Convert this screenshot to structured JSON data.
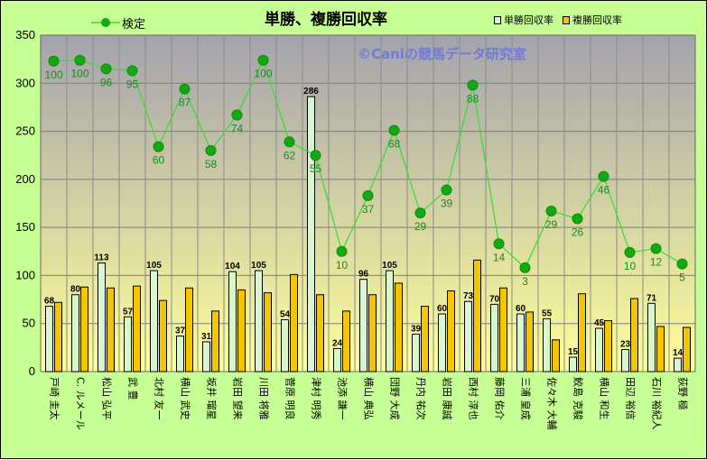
{
  "title": "単勝、複勝回収率",
  "watermark": "©Caniの競馬データ研究室",
  "colors": {
    "win": "#d8f7cf",
    "place": "#f5c600",
    "line": "#33dd33",
    "marker": "#11aa11",
    "plot_top": "#a4a2ad",
    "plot_bottom": "#ffff99",
    "frame": "#c6ff94"
  },
  "chart_data": {
    "type": "bar",
    "title": "単勝、複勝回収率",
    "ylim": [
      0,
      350
    ],
    "yticks": [
      0,
      50,
      100,
      150,
      200,
      250,
      300,
      350
    ],
    "grid": true,
    "legend_placement": "top",
    "categories": [
      "戸崎 圭太",
      "C. ルメール",
      "松山 弘平",
      "武 豊",
      "北村 友一",
      "横山 武史",
      "坂井 瑠星",
      "岩田 望来",
      "川田 将雅",
      "菅原 明良",
      "津村 明秀",
      "池添 謙一",
      "横山 典弘",
      "団野 大成",
      "丹内 祐次",
      "岩田 康誠",
      "西村 淳也",
      "藤岡 佑介",
      "三浦 皇成",
      "佐々木 大輔",
      "鮫島 克駿",
      "横山 和生",
      "田辺 裕信",
      "石川 裕紀人",
      "荻野 極"
    ],
    "series": [
      {
        "name": "単勝回収率",
        "kind": "bar",
        "values": [
          68,
          80,
          113,
          57,
          105,
          37,
          31,
          104,
          105,
          54,
          286,
          24,
          96,
          105,
          39,
          60,
          73,
          70,
          60,
          55,
          15,
          45,
          23,
          71,
          14
        ]
      },
      {
        "name": "複勝回収率",
        "kind": "bar",
        "values": [
          72,
          88,
          87,
          89,
          74,
          87,
          63,
          85,
          82,
          101,
          80,
          63,
          80,
          92,
          68,
          84,
          116,
          87,
          62,
          33,
          81,
          53,
          76,
          47,
          46
        ]
      },
      {
        "name": "検定",
        "kind": "line",
        "values": [
          323,
          324,
          315,
          313,
          234,
          294,
          230,
          267,
          324,
          239,
          225,
          125,
          183,
          251,
          165,
          189,
          298,
          133,
          108,
          167,
          159,
          203,
          124,
          128,
          112
        ],
        "labels": [
          100,
          100,
          96,
          95,
          60,
          87,
          58,
          74,
          100,
          62,
          55,
          10,
          37,
          68,
          29,
          39,
          88,
          14,
          3,
          29,
          26,
          46,
          10,
          12,
          5
        ]
      }
    ]
  }
}
